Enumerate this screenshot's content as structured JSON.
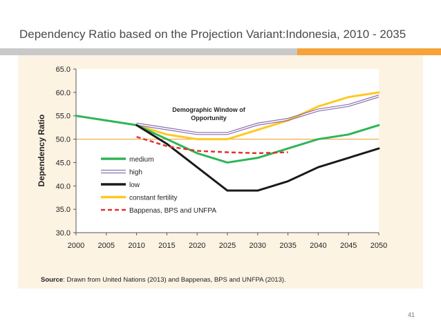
{
  "slide": {
    "title": "Dependency Ratio based on the Projection Variant:Indonesia, 2010 - 2035",
    "source_label": "Source",
    "source_text": ": Drawn from United Nations (2013) and Bappenas, BPS and UNFPA (2013).",
    "page_number": "41"
  },
  "colors": {
    "accent_orange": "#f5a33a",
    "panel_bg": "#fdf3e3",
    "medium": "#2db557",
    "high": "#8b6fae",
    "low": "#1a1a1a",
    "constant": "#ffc820",
    "bappenas": "#e0312a",
    "ref_line": "#f5a33a"
  },
  "chart_data": {
    "type": "line",
    "title": "",
    "xlabel": "",
    "ylabel": "Dependency Ratio",
    "x": [
      2000,
      2005,
      2010,
      2015,
      2020,
      2025,
      2030,
      2035,
      2040,
      2045,
      2050
    ],
    "ylim": [
      30,
      65
    ],
    "yticks": [
      "30.0",
      "35.0",
      "40.0",
      "45.0",
      "50.0",
      "55.0",
      "60.0",
      "65.0"
    ],
    "xticks": [
      "2000",
      "2005",
      "2010",
      "2015",
      "2020",
      "2025",
      "2030",
      "2035",
      "2040",
      "2045",
      "2050"
    ],
    "reference_line": 50,
    "annotation": "Demographic Window of Opportunity",
    "series": [
      {
        "name": "medium",
        "style": "solid",
        "x": [
          2000,
          2005,
          2010,
          2015,
          2020,
          2025,
          2030,
          2035,
          2040,
          2045,
          2050
        ],
        "values": [
          55,
          54,
          53,
          50,
          47,
          45,
          46,
          48,
          50,
          51,
          53
        ]
      },
      {
        "name": "high",
        "style": "double",
        "x": [
          2010,
          2015,
          2020,
          2025,
          2030,
          2035,
          2040,
          2045,
          2050
        ],
        "values": [
          53,
          52,
          51,
          51,
          53,
          54,
          56,
          57,
          59
        ]
      },
      {
        "name": "low",
        "style": "solid",
        "x": [
          2010,
          2015,
          2020,
          2025,
          2030,
          2035,
          2040,
          2045,
          2050
        ],
        "values": [
          53,
          49,
          44,
          39,
          39,
          41,
          44,
          46,
          48
        ]
      },
      {
        "name": "constant fertility",
        "style": "solid",
        "x": [
          2010,
          2015,
          2020,
          2025,
          2030,
          2035,
          2040,
          2045,
          2050
        ],
        "values": [
          53,
          51,
          50,
          50,
          52,
          54,
          57,
          59,
          60
        ]
      },
      {
        "name": "Bappenas, BPS and UNFPA",
        "style": "dashed",
        "x": [
          2010,
          2015,
          2020,
          2025,
          2030,
          2035
        ],
        "values": [
          50.5,
          48.5,
          47.5,
          47.2,
          47,
          47.2
        ]
      }
    ]
  }
}
